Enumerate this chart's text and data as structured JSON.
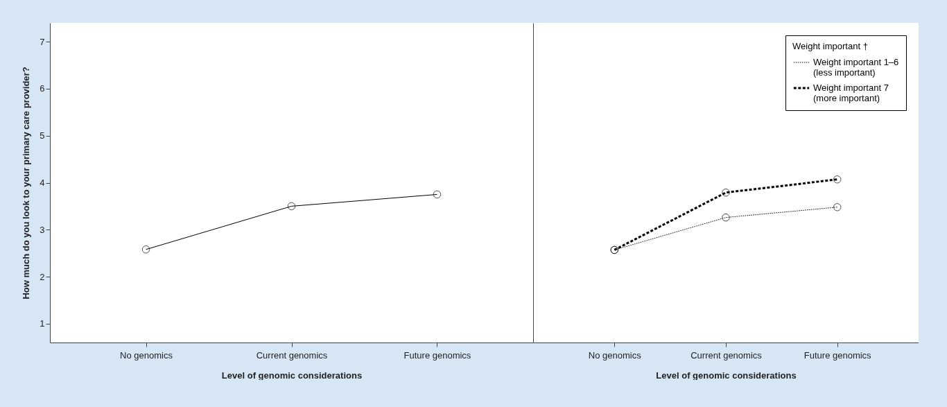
{
  "chart_data": [
    {
      "type": "line",
      "categories": [
        "No genomics",
        "Current genomics",
        "Future genomics"
      ],
      "xlabel": "Level of genomic considerations",
      "ylabel": "How much do you look to your primary care provider?",
      "ylim": [
        0.6,
        7.4
      ],
      "yticks": [
        1,
        2,
        3,
        4,
        5,
        6,
        7
      ],
      "marker": "circle",
      "series": [
        {
          "color": "#000000",
          "line_style": "solid",
          "values": [
            2.58,
            3.5,
            3.75
          ]
        }
      ]
    },
    {
      "type": "line",
      "categories": [
        "No genomics",
        "Current genomics",
        "Future genomics"
      ],
      "xlabel": "Level of genomic considerations",
      "ylim": [
        0.6,
        7.4
      ],
      "yticks": [
        1,
        2,
        3,
        4,
        5,
        6,
        7
      ],
      "tick_labels": "x",
      "marker": "circle",
      "legend": "top right",
      "legend_title": "Weight important †",
      "series": [
        {
          "name": "Weight important 1–6 (less important)",
          "color": "#000000",
          "line_style": "dotted",
          "values": [
            2.57,
            3.26,
            3.48
          ]
        },
        {
          "name": "Weight important 7 (more important)",
          "color": "#000000",
          "line_style": "dashed",
          "values": [
            2.57,
            3.79,
            4.07
          ]
        }
      ]
    }
  ]
}
